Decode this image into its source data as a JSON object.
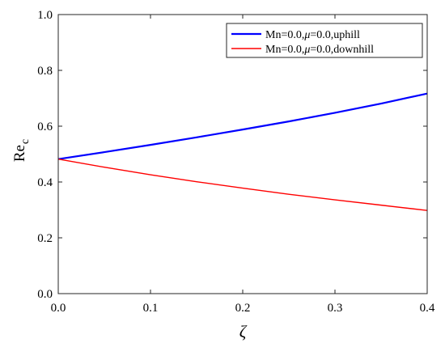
{
  "chart_data": {
    "type": "line",
    "xlabel": "ζ",
    "ylabel_main": "Re",
    "ylabel_sub": "c",
    "xlim": [
      0,
      0.4
    ],
    "ylim": [
      0,
      1.0
    ],
    "xticks": [
      0,
      0.1,
      0.2,
      0.3,
      0.4
    ],
    "xtick_labels": [
      "0.0",
      "0.1",
      "0.2",
      "0.3",
      "0.4"
    ],
    "yticks": [
      0,
      0.2,
      0.4,
      0.6,
      0.8,
      1.0
    ],
    "ytick_labels": [
      "0.0",
      "0.2",
      "0.4",
      "0.6",
      "0.8",
      "1.0"
    ],
    "grid": false,
    "legend_position": "top-right",
    "series": [
      {
        "legend_parts": [
          "Mn=0.0,",
          "μ",
          "=0.0,uphill"
        ],
        "color": "#0000ff",
        "x": [
          0,
          0.05,
          0.1,
          0.15,
          0.2,
          0.25,
          0.3,
          0.35,
          0.4
        ],
        "y": [
          0.482,
          0.507,
          0.533,
          0.56,
          0.588,
          0.617,
          0.648,
          0.681,
          0.717
        ]
      },
      {
        "legend_parts": [
          "Mn=0.0,",
          "μ",
          "=0.0,downhill"
        ],
        "color": "#ff0000",
        "x": [
          0,
          0.05,
          0.1,
          0.15,
          0.2,
          0.25,
          0.3,
          0.35,
          0.4
        ],
        "y": [
          0.482,
          0.453,
          0.426,
          0.401,
          0.378,
          0.356,
          0.336,
          0.317,
          0.298
        ]
      }
    ]
  }
}
